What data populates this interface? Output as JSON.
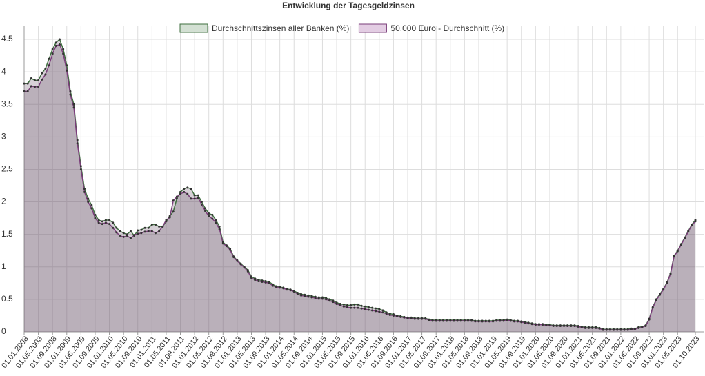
{
  "chart_data": {
    "type": "area-line",
    "title": "Entwicklung der Tagesgeldzinsen",
    "categories": [
      "01.01.2008",
      null,
      null,
      null,
      "01.05.2008",
      null,
      null,
      null,
      "01.09.2008",
      null,
      null,
      null,
      "01.01.2009",
      null,
      null,
      null,
      "01.05.2009",
      null,
      null,
      null,
      "01.09.2009",
      null,
      null,
      null,
      "01.01.2010",
      null,
      null,
      null,
      "01.05.2010",
      null,
      null,
      null,
      "01.09.2010",
      null,
      null,
      null,
      "01.01.2011",
      null,
      null,
      null,
      "01.05.2011",
      null,
      null,
      null,
      "01.09.2011",
      null,
      null,
      null,
      "01.01.2012",
      null,
      null,
      null,
      "01.05.2012",
      null,
      null,
      null,
      "01.09.2012",
      null,
      null,
      null,
      "01.01.2013",
      null,
      null,
      null,
      "01.05.2013",
      null,
      null,
      null,
      "01.09.2013",
      null,
      null,
      null,
      "01.01.2014",
      null,
      null,
      null,
      "01.05.2014",
      null,
      null,
      null,
      "01.09.2014",
      null,
      null,
      null,
      "01.01.2015",
      null,
      null,
      null,
      "01.05.2015",
      null,
      null,
      null,
      "01.09.2015",
      null,
      null,
      null,
      "01.01.2016",
      null,
      null,
      null,
      "01.05.2016",
      null,
      null,
      null,
      "01.09.2016",
      null,
      null,
      null,
      "01.01.2017",
      null,
      null,
      null,
      "01.05.2017",
      null,
      null,
      null,
      "01.09.2017",
      null,
      null,
      null,
      "01.01.2018",
      null,
      null,
      null,
      "01.05.2018",
      null,
      null,
      null,
      "01.09.2018",
      null,
      null,
      null,
      "01.01.2019",
      null,
      null,
      null,
      "01.05.2019",
      null,
      null,
      null,
      "01.09.2019",
      null,
      null,
      null,
      "01.01.2020",
      null,
      null,
      null,
      "01.05.2020",
      null,
      null,
      null,
      "01.09.2020",
      null,
      null,
      null,
      "01.01.2021",
      null,
      null,
      null,
      "01.05.2021",
      null,
      null,
      null,
      "01.09.2021",
      null,
      null,
      null,
      "01.01.2022",
      null,
      null,
      null,
      "01.05.2022",
      null,
      null,
      null,
      "01.09.2022",
      null,
      null,
      null,
      "01.01.2023",
      null,
      null,
      null,
      "01.05.2023",
      null,
      null,
      null,
      null,
      "01.10.2023"
    ],
    "series": [
      {
        "name": "Durchschnittszinsen aller Banken (%)",
        "color": "#3f6f3f",
        "legend_fill": "#d3e0d3",
        "values": [
          3.82,
          3.82,
          3.9,
          3.87,
          3.87,
          3.98,
          4.05,
          4.2,
          4.35,
          4.45,
          4.5,
          4.35,
          4.1,
          3.7,
          3.5,
          2.95,
          2.55,
          2.2,
          2.05,
          1.95,
          1.8,
          1.72,
          1.7,
          1.72,
          1.72,
          1.68,
          1.6,
          1.55,
          1.52,
          1.5,
          1.55,
          1.48,
          1.56,
          1.57,
          1.6,
          1.6,
          1.65,
          1.65,
          1.62,
          1.62,
          1.7,
          1.78,
          1.85,
          2.05,
          2.15,
          2.2,
          2.22,
          2.2,
          2.1,
          2.1,
          2.0,
          1.9,
          1.82,
          1.8,
          1.72,
          1.62,
          1.38,
          1.33,
          1.28,
          1.16,
          1.1,
          1.05,
          1.0,
          0.95,
          0.85,
          0.82,
          0.8,
          0.79,
          0.78,
          0.77,
          0.73,
          0.7,
          0.69,
          0.68,
          0.66,
          0.65,
          0.63,
          0.6,
          0.58,
          0.57,
          0.56,
          0.55,
          0.54,
          0.53,
          0.53,
          0.52,
          0.5,
          0.48,
          0.45,
          0.43,
          0.42,
          0.41,
          0.41,
          0.42,
          0.42,
          0.4,
          0.39,
          0.38,
          0.37,
          0.36,
          0.35,
          0.33,
          0.3,
          0.28,
          0.27,
          0.25,
          0.24,
          0.23,
          0.22,
          0.22,
          0.21,
          0.21,
          0.21,
          0.21,
          0.19,
          0.18,
          0.18,
          0.18,
          0.18,
          0.18,
          0.18,
          0.18,
          0.18,
          0.18,
          0.18,
          0.18,
          0.18,
          0.17,
          0.17,
          0.17,
          0.17,
          0.17,
          0.17,
          0.18,
          0.18,
          0.18,
          0.19,
          0.18,
          0.17,
          0.17,
          0.16,
          0.15,
          0.14,
          0.13,
          0.12,
          0.12,
          0.12,
          0.11,
          0.11,
          0.1,
          0.1,
          0.1,
          0.1,
          0.1,
          0.1,
          0.1,
          0.09,
          0.08,
          0.07,
          0.07,
          0.07,
          0.07,
          0.06,
          0.04,
          0.04,
          0.04,
          0.04,
          0.04,
          0.04,
          0.04,
          0.04,
          0.05,
          0.05,
          0.07,
          0.08,
          0.1,
          0.2,
          0.38,
          0.5,
          0.58,
          0.66,
          0.76,
          0.9,
          1.17,
          1.25,
          1.35,
          1.45,
          1.55,
          1.65,
          1.72
        ]
      },
      {
        "name": "50.000 Euro - Durchschnitt (%)",
        "color": "#7a3d7a",
        "legend_fill": "#e3cde3",
        "values": [
          3.7,
          3.7,
          3.78,
          3.77,
          3.77,
          3.88,
          3.96,
          4.1,
          4.28,
          4.4,
          4.42,
          4.28,
          4.02,
          3.65,
          3.45,
          2.9,
          2.5,
          2.15,
          2.0,
          1.9,
          1.75,
          1.68,
          1.66,
          1.68,
          1.66,
          1.6,
          1.53,
          1.48,
          1.46,
          1.48,
          1.44,
          1.49,
          1.51,
          1.52,
          1.54,
          1.55,
          1.55,
          1.52,
          1.55,
          1.62,
          1.72,
          1.76,
          2.02,
          2.08,
          2.12,
          2.15,
          2.12,
          2.05,
          2.05,
          2.06,
          1.96,
          1.86,
          1.78,
          1.74,
          1.68,
          1.58,
          1.36,
          1.32,
          1.26,
          1.15,
          1.09,
          1.04,
          0.99,
          0.93,
          0.83,
          0.8,
          0.78,
          0.77,
          0.76,
          0.75,
          0.71,
          0.69,
          0.68,
          0.67,
          0.65,
          0.64,
          0.62,
          0.58,
          0.56,
          0.55,
          0.54,
          0.53,
          0.52,
          0.51,
          0.51,
          0.5,
          0.48,
          0.46,
          0.43,
          0.41,
          0.39,
          0.38,
          0.37,
          0.37,
          0.37,
          0.36,
          0.35,
          0.34,
          0.33,
          0.32,
          0.31,
          0.3,
          0.28,
          0.26,
          0.25,
          0.24,
          0.23,
          0.22,
          0.21,
          0.21,
          0.2,
          0.2,
          0.2,
          0.2,
          0.18,
          0.17,
          0.17,
          0.17,
          0.17,
          0.17,
          0.17,
          0.17,
          0.17,
          0.17,
          0.17,
          0.17,
          0.17,
          0.16,
          0.16,
          0.16,
          0.16,
          0.16,
          0.16,
          0.17,
          0.17,
          0.17,
          0.18,
          0.17,
          0.16,
          0.16,
          0.15,
          0.14,
          0.13,
          0.12,
          0.11,
          0.11,
          0.11,
          0.1,
          0.1,
          0.09,
          0.09,
          0.09,
          0.09,
          0.09,
          0.09,
          0.09,
          0.08,
          0.07,
          0.06,
          0.06,
          0.06,
          0.06,
          0.05,
          0.03,
          0.03,
          0.03,
          0.03,
          0.03,
          0.03,
          0.03,
          0.03,
          0.04,
          0.04,
          0.06,
          0.07,
          0.09,
          0.19,
          0.37,
          0.49,
          0.57,
          0.65,
          0.75,
          0.89,
          1.16,
          1.24,
          1.34,
          1.44,
          1.54,
          1.64,
          1.7
        ]
      }
    ],
    "ylim": [
      0,
      4.5
    ],
    "yticks": [
      0,
      0.5,
      1,
      1.5,
      2,
      2.5,
      3,
      3.5,
      4,
      4.5
    ],
    "grid": true,
    "legend": "top"
  }
}
